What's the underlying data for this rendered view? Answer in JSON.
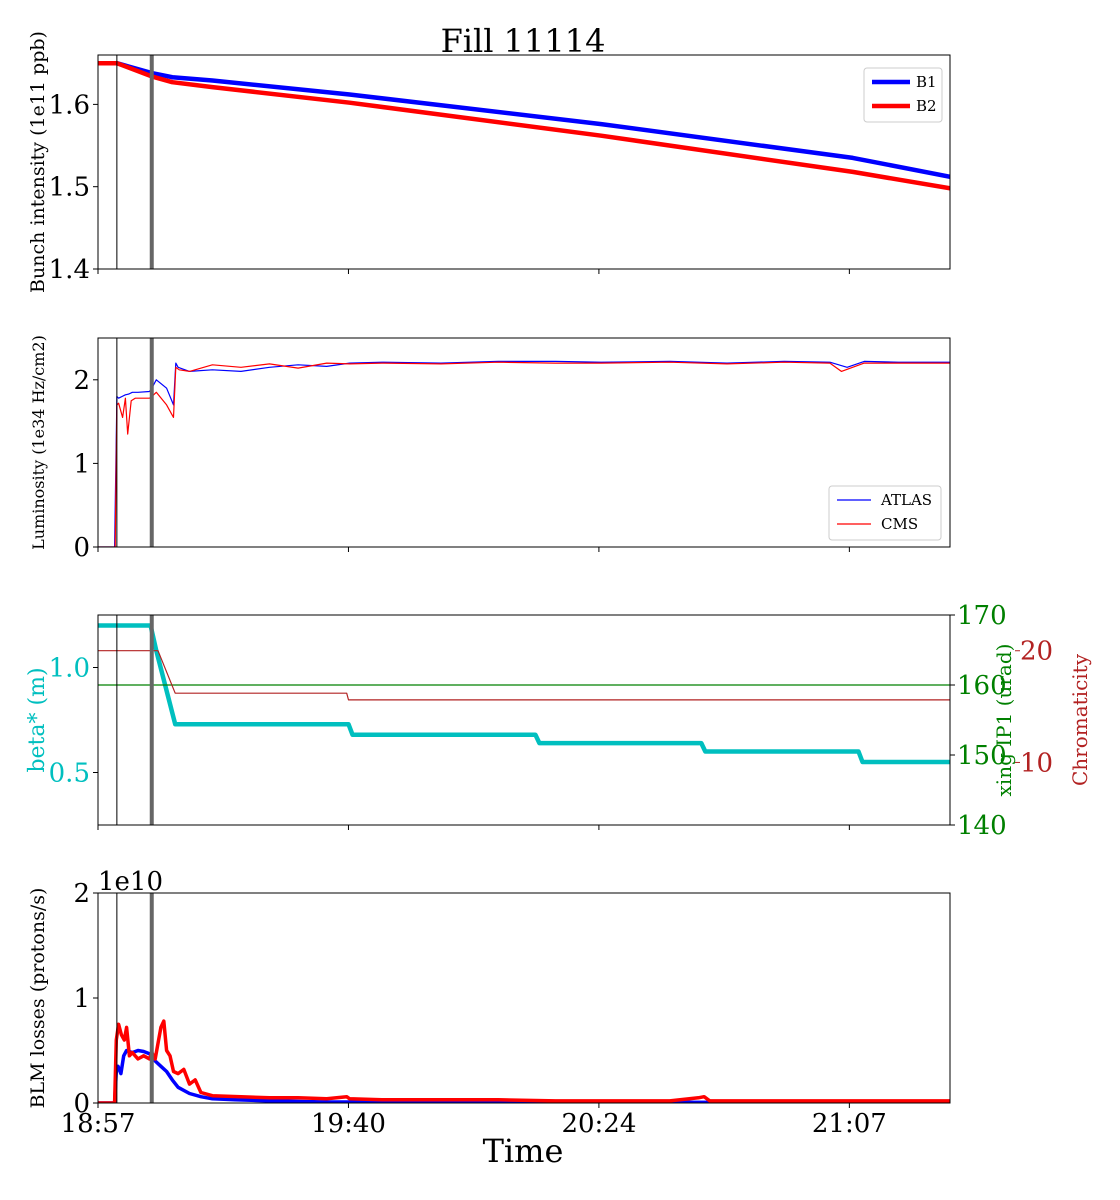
{
  "title": "Fill 11114",
  "xlabel": "Time",
  "x_tick_labels": [
    "18:57",
    "19:40",
    "20:24",
    "21:07"
  ],
  "x_tick_minutes": [
    0,
    43.8,
    87.6,
    131.4
  ],
  "markers_minutes": [
    3.3,
    9.4
  ],
  "colors": {
    "B1": "#0000ff",
    "B2": "#ff0000",
    "beta": "#00bfbf",
    "xing": "#008000",
    "chroma": "#b22222",
    "marker": "#666666"
  },
  "chart_data": [
    {
      "type": "line",
      "ylabel": "Bunch intensity (1e11 ppb)",
      "ylim": [
        1.4,
        1.66
      ],
      "yticks": [
        1.4,
        1.5,
        1.6
      ],
      "ytick_labels": [
        "1.4",
        "1.5",
        "1.6"
      ],
      "legend": "top-right",
      "series": [
        {
          "name": "B1",
          "x": [
            0,
            3.3,
            9.4,
            13,
            20,
            44,
            88,
            132,
            149
          ],
          "y": [
            1.65,
            1.65,
            1.638,
            1.633,
            1.629,
            1.612,
            1.576,
            1.535,
            1.512
          ]
        },
        {
          "name": "B2",
          "x": [
            0,
            3.3,
            9.4,
            13,
            20,
            44,
            88,
            132,
            149
          ],
          "y": [
            1.65,
            1.65,
            1.634,
            1.627,
            1.621,
            1.602,
            1.562,
            1.518,
            1.498
          ]
        }
      ]
    },
    {
      "type": "line",
      "ylabel": "Luminosity (1e34 Hz/cm2)",
      "ylim": [
        0,
        2.5
      ],
      "yticks": [
        0,
        1,
        2
      ],
      "ytick_labels": [
        "0",
        "1",
        "2"
      ],
      "legend": "bottom-right",
      "series": [
        {
          "name": "ATLAS",
          "x": [
            0,
            2.9,
            3.3,
            3.6,
            4.2,
            4.8,
            5.4,
            6.0,
            7.0,
            9.0,
            9.4,
            10.2,
            12.0,
            13.2,
            13.6,
            14.0,
            16,
            20,
            25,
            30,
            35,
            40,
            44,
            50,
            60,
            70,
            80,
            88,
            100,
            110,
            120,
            128,
            131,
            134,
            140,
            149
          ],
          "y": [
            0,
            0,
            1.8,
            1.78,
            1.8,
            1.82,
            1.83,
            1.85,
            1.85,
            1.86,
            1.9,
            2.0,
            1.9,
            1.7,
            2.2,
            2.15,
            2.1,
            2.12,
            2.1,
            2.15,
            2.18,
            2.16,
            2.2,
            2.21,
            2.2,
            2.22,
            2.22,
            2.21,
            2.22,
            2.2,
            2.22,
            2.21,
            2.15,
            2.22,
            2.21,
            2.21
          ]
        },
        {
          "name": "CMS",
          "x": [
            0,
            3.0,
            3.3,
            3.6,
            4.3,
            4.8,
            5.2,
            5.8,
            6.5,
            9.0,
            9.4,
            10.2,
            12.0,
            13.2,
            13.6,
            14.2,
            16,
            20,
            25,
            30,
            35,
            40,
            44,
            50,
            60,
            70,
            80,
            88,
            100,
            110,
            120,
            128,
            130,
            134,
            140,
            149
          ],
          "y": [
            0,
            0,
            1.7,
            1.72,
            1.55,
            1.78,
            1.35,
            1.75,
            1.78,
            1.78,
            1.8,
            1.85,
            1.7,
            1.55,
            2.15,
            2.12,
            2.1,
            2.18,
            2.15,
            2.19,
            2.14,
            2.2,
            2.19,
            2.2,
            2.19,
            2.21,
            2.2,
            2.2,
            2.21,
            2.19,
            2.21,
            2.2,
            2.1,
            2.2,
            2.2,
            2.2
          ]
        }
      ]
    },
    {
      "type": "line",
      "ylabel": "beta* (m)",
      "ylim": [
        0.25,
        1.25
      ],
      "yticks": [
        0.5,
        1.0
      ],
      "ytick_labels": [
        "0.5",
        "1.0"
      ],
      "y2label": "xing IP1 (urad)",
      "y2lim": [
        140,
        170
      ],
      "y2ticks": [
        140,
        150,
        160,
        170
      ],
      "y2tick_labels": [
        "140",
        "150",
        "160",
        "170"
      ],
      "y3label": "Chromaticity",
      "y3lim": [
        4.4,
        23.2
      ],
      "y3ticks": [
        10,
        20
      ],
      "y3tick_labels": [
        "10",
        "20"
      ],
      "series": [
        {
          "name": "beta*",
          "axis": "y",
          "x": [
            0,
            9.2,
            10.2,
            13.5,
            43.8,
            44.5,
            76.5,
            77.2,
            105.5,
            106.2,
            133.0,
            133.7,
            149
          ],
          "y": [
            1.2,
            1.2,
            1.08,
            0.73,
            0.73,
            0.68,
            0.68,
            0.64,
            0.64,
            0.6,
            0.6,
            0.55,
            0.55
          ]
        },
        {
          "name": "xing IP1",
          "axis": "y2",
          "x": [
            0,
            9.4,
            149
          ],
          "y": [
            160,
            160,
            160
          ]
        },
        {
          "name": "chromaticity",
          "axis": "y3",
          "x": [
            0,
            10.5,
            13.5,
            43.5,
            43.8,
            149
          ],
          "y": [
            20.0,
            20.0,
            16.2,
            16.2,
            15.6,
            15.6
          ]
        }
      ]
    },
    {
      "type": "line",
      "ylabel": "BLM losses (protons/s)",
      "ylim": [
        0,
        2
      ],
      "yticks": [
        0,
        1,
        2
      ],
      "ytick_labels": [
        "0",
        "1",
        "2"
      ],
      "offset_label": "1e10",
      "series": [
        {
          "name": "B1",
          "x": [
            0,
            2.9,
            3.2,
            3.5,
            4.0,
            4.5,
            5.0,
            6.0,
            7.0,
            8.0,
            9.0,
            9.4,
            10.0,
            11.0,
            12.0,
            13.0,
            14.0,
            16.0,
            18.0,
            20.0,
            24.0,
            30.0,
            40.0,
            149
          ],
          "y": [
            0,
            0,
            0.3,
            0.35,
            0.28,
            0.45,
            0.5,
            0.48,
            0.5,
            0.49,
            0.47,
            0.45,
            0.4,
            0.35,
            0.3,
            0.22,
            0.15,
            0.09,
            0.06,
            0.04,
            0.03,
            0.02,
            0.01,
            0.005
          ]
        },
        {
          "name": "B2",
          "x": [
            0,
            2.9,
            3.2,
            3.6,
            4.1,
            4.6,
            5.0,
            5.5,
            6.0,
            7.0,
            8.0,
            9.0,
            9.4,
            10.0,
            10.6,
            11.0,
            11.5,
            12.0,
            12.6,
            13.2,
            14.0,
            15.0,
            16.0,
            17.0,
            18.0,
            20.0,
            25.0,
            30.0,
            35.0,
            40.0,
            43.5,
            44.0,
            50.0,
            60.0,
            70.0,
            80.0,
            100.0,
            105.0,
            106.0,
            107.0,
            120.0,
            149
          ],
          "y": [
            0,
            0,
            0.6,
            0.75,
            0.65,
            0.6,
            0.72,
            0.45,
            0.48,
            0.42,
            0.45,
            0.42,
            0.48,
            0.42,
            0.6,
            0.72,
            0.78,
            0.5,
            0.45,
            0.3,
            0.28,
            0.32,
            0.18,
            0.22,
            0.1,
            0.07,
            0.06,
            0.05,
            0.05,
            0.04,
            0.06,
            0.04,
            0.03,
            0.03,
            0.03,
            0.02,
            0.02,
            0.05,
            0.06,
            0.02,
            0.02,
            0.02
          ]
        }
      ]
    }
  ]
}
